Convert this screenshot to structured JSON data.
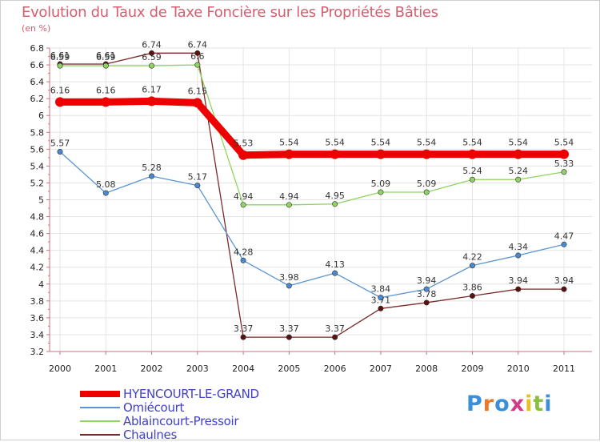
{
  "chart_data": {
    "type": "line",
    "title": "Evolution du Taux de Taxe Foncière sur les Propriétés Bâties",
    "unit_label": "(en %)",
    "x": [
      "2000",
      "2001",
      "2002",
      "2003",
      "2004",
      "2005",
      "2006",
      "2007",
      "2008",
      "2009",
      "2010",
      "2011"
    ],
    "ylim": [
      3.2,
      6.8
    ],
    "yticks": [
      "3.2",
      "3.4",
      "3.6",
      "3.8",
      "4",
      "4.2",
      "4.4",
      "4.6",
      "4.8",
      "5",
      "5.2",
      "5.4",
      "5.6",
      "5.8",
      "6",
      "6.2",
      "6.4",
      "6.6",
      "6.8"
    ],
    "series": [
      {
        "name": "Chaulnes",
        "color": "#7a2a2a",
        "marker": "#5a1010",
        "values": [
          6.61,
          6.61,
          6.74,
          6.74,
          3.37,
          3.37,
          3.37,
          3.71,
          3.78,
          3.86,
          3.94,
          3.94
        ],
        "labels": [
          "6.61",
          "6.61",
          "6.74",
          "6.74",
          "3.37",
          "3.37",
          "3.37",
          "3.71",
          "3.78",
          "3.86",
          "3.94",
          "3.94"
        ]
      },
      {
        "name": "Ablaincourt-Pressoir",
        "color": "#8fd460",
        "marker": "#8fd460",
        "values": [
          6.59,
          6.59,
          6.59,
          6.6,
          4.94,
          4.94,
          4.95,
          5.09,
          5.09,
          5.24,
          5.24,
          5.33
        ],
        "labels": [
          "6.59",
          "6.59",
          "6.59",
          "6.6",
          "4.94",
          "4.94",
          "4.95",
          "5.09",
          "5.09",
          "5.24",
          "5.24",
          "5.33"
        ]
      },
      {
        "name": "Omiécourt",
        "color": "#5a96d2",
        "marker": "#4a8ad0",
        "values": [
          5.57,
          5.08,
          5.28,
          5.17,
          4.28,
          3.98,
          4.13,
          3.84,
          3.94,
          4.22,
          4.34,
          4.47
        ],
        "labels": [
          "5.57",
          "5.08",
          "5.28",
          "5.17",
          "4.28",
          "3.98",
          "4.13",
          "3.84",
          "3.94",
          "4.22",
          "4.34",
          "4.47"
        ]
      },
      {
        "name": "HYENCOURT-LE-GRAND",
        "color": "#ee0000",
        "marker": "#ee0000",
        "values": [
          6.16,
          6.16,
          6.17,
          6.15,
          5.53,
          5.54,
          5.54,
          5.54,
          5.54,
          5.54,
          5.54,
          5.54
        ],
        "labels": [
          "6.16",
          "6.16",
          "6.17",
          "6.15",
          "5.53",
          "5.54",
          "5.54",
          "5.54",
          "5.54",
          "5.54",
          "5.54",
          "5.54"
        ]
      }
    ],
    "legend": [
      {
        "name": "HYENCOURT-LE-GRAND",
        "color": "#ee0000",
        "thickness": 8
      },
      {
        "name": "Omiécourt",
        "color": "#5a96d2",
        "thickness": 2
      },
      {
        "name": "Ablaincourt-Pressoir",
        "color": "#8fd460",
        "thickness": 2
      },
      {
        "name": "Chaulnes",
        "color": "#7a2a2a",
        "thickness": 2
      }
    ],
    "grid": true,
    "legend_position": "bottom-left"
  },
  "logo": {
    "letters": [
      "P",
      "r",
      "o",
      "x",
      "i",
      "t",
      "i"
    ],
    "colors": [
      "#3a8fd8",
      "#e87a2a",
      "#3a8fd8",
      "#d43a8a",
      "#e8c020",
      "#8ac040",
      "#3a8fd8"
    ]
  }
}
